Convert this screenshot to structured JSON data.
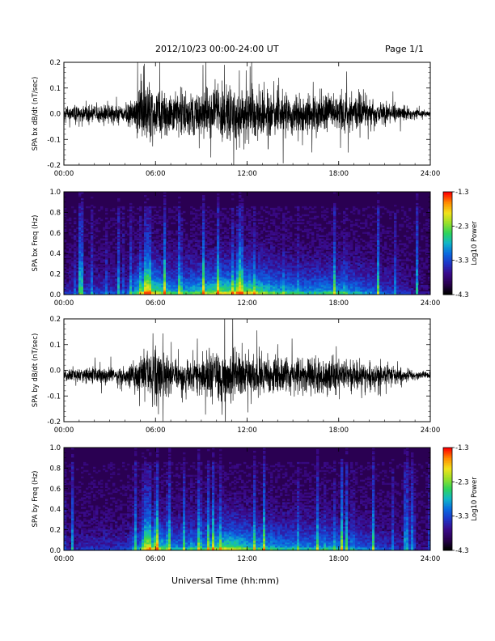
{
  "header": {
    "title": "2012/10/23  00:00-24:00 UT",
    "page": "Page 1/1"
  },
  "footer": {
    "xlabel": "Universal Time (hh:mm)"
  },
  "colors": {
    "trace": "#000000",
    "colormap": [
      "#000000",
      "#2a0052",
      "#3a0a8a",
      "#1f35c8",
      "#0a6be0",
      "#10b6c8",
      "#2ed45a",
      "#9ae028",
      "#f2e21c",
      "#ff8c00",
      "#ff0000"
    ]
  },
  "chart_data": [
    {
      "type": "line",
      "ylabel": "SPA bx dB/dt (nT/sec)",
      "xlim": [
        0,
        24
      ],
      "ylim": [
        -0.2,
        0.2
      ],
      "xticks": [
        "00:00",
        "06:00",
        "12:00",
        "18:00",
        "24:00"
      ],
      "yticks": [
        "0.2",
        "0.1",
        "0.0",
        "-0.1",
        "-0.2"
      ],
      "grid": false,
      "series": [
        {
          "x": [
            0,
            1,
            2,
            3,
            4,
            5,
            6,
            7,
            8,
            9,
            10,
            11,
            12,
            13,
            14,
            15,
            16,
            17,
            18,
            19,
            20,
            21,
            22,
            23,
            24
          ],
          "amplitude": [
            0.05,
            0.07,
            0.07,
            0.07,
            0.06,
            0.2,
            0.2,
            0.14,
            0.15,
            0.17,
            0.2,
            0.2,
            0.2,
            0.18,
            0.15,
            0.14,
            0.13,
            0.14,
            0.14,
            0.12,
            0.1,
            0.08,
            0.06,
            0.03,
            0.02
          ]
        }
      ]
    },
    {
      "type": "heatmap",
      "ylabel": "SPA bx Freq (Hz)",
      "colorbar_label": "Log10 Power",
      "xlim": [
        0,
        24
      ],
      "ylim": [
        0.0,
        1.0
      ],
      "xticks": [
        "00:00",
        "06:00",
        "12:00",
        "18:00",
        "24:00"
      ],
      "yticks": [
        "1.0",
        "0.8",
        "0.6",
        "0.4",
        "0.2",
        "0.0"
      ],
      "colorbar_ticks": [
        "-1.3",
        "-2.3",
        "-3.3",
        "-4.3"
      ],
      "zlim": [
        -4.3,
        -1.3
      ]
    },
    {
      "type": "line",
      "ylabel": "SPA by dB/dt (nT/sec)",
      "xlim": [
        0,
        24
      ],
      "ylim": [
        -0.2,
        0.2
      ],
      "xticks": [
        "00:00",
        "06:00",
        "12:00",
        "18:00",
        "24:00"
      ],
      "yticks": [
        "0.2",
        "0.1",
        "0.0",
        "-0.1",
        "-0.2"
      ],
      "grid": false,
      "series": [
        {
          "x": [
            0,
            1,
            2,
            3,
            4,
            5,
            6,
            7,
            8,
            9,
            10,
            11,
            12,
            13,
            14,
            15,
            16,
            17,
            18,
            19,
            20,
            21,
            22,
            23,
            24
          ],
          "amplitude": [
            0.04,
            0.05,
            0.06,
            0.06,
            0.06,
            0.13,
            0.2,
            0.12,
            0.13,
            0.13,
            0.18,
            0.2,
            0.16,
            0.14,
            0.13,
            0.13,
            0.12,
            0.13,
            0.12,
            0.1,
            0.09,
            0.07,
            0.05,
            0.03,
            0.02
          ]
        }
      ]
    },
    {
      "type": "heatmap",
      "ylabel": "SPA by Freq (Hz)",
      "colorbar_label": "Log10 Power",
      "xlim": [
        0,
        24
      ],
      "ylim": [
        0.0,
        1.0
      ],
      "xticks": [
        "00:00",
        "06:00",
        "12:00",
        "18:00",
        "24:00"
      ],
      "yticks": [
        "1.0",
        "0.8",
        "0.6",
        "0.4",
        "0.2",
        "0.0"
      ],
      "colorbar_ticks": [
        "-1.3",
        "-2.3",
        "-3.3",
        "-4.3"
      ],
      "zlim": [
        -4.3,
        -1.3
      ]
    }
  ]
}
